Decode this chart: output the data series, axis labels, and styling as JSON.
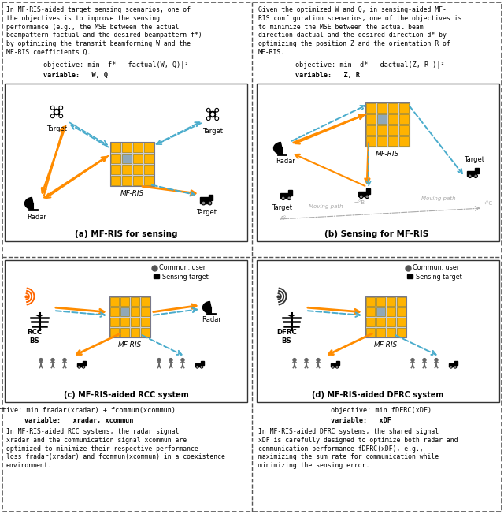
{
  "fig_width": 6.4,
  "fig_height": 6.52,
  "orange": "#FF8C00",
  "blue_dash": "#4AACCC",
  "gray_dash": "#AAAAAA",
  "panel_bg": "#f8f8f4",
  "text_a": [
    "In MF-RIS-aided target sensing scenarios, one of",
    "the objectives is to improve the sensing",
    "performance (e.g., the MSE between the actual",
    "beampattern factual and the desired beampattern f*)",
    "by optimizing the transmit beamforming W and the",
    "MF-RIS coefficients Q."
  ],
  "obj_a": "objective: min |f* - factual(W, Q)|²",
  "var_a": "variable:   W, Q",
  "text_b": [
    "Given the optimized W and Q, in sensing-aided MF-",
    "RIS configuration scenarios, one of the objectives is",
    "to minimize the MSE between the actual beam",
    "direction dactual and the desired direction d* by",
    "optimizing the position Z and the orientation R of",
    "MF-RIS."
  ],
  "obj_b": "objective: min |d* - dactual(Z, R )|²",
  "var_b": "variable:   Z, R",
  "obj_c": "objective: min fradar(xradar) + fcommun(xcommun)",
  "var_c": "variable:   xradar, xcommun",
  "text_c": [
    "In MF-RIS-aided RCC systems, the radar signal",
    "xradar and the communication signal xcommun are",
    "optimized to minimize their respective performance",
    "loss fradar(xradar) and fcommun(xcommun) in a coexistence",
    "environment."
  ],
  "obj_d": "objective: min fDFRC(xDF)",
  "var_d": "variable:   xDF",
  "text_d": [
    "In MF-RIS-aided DFRC systems, the shared signal",
    "xDF is carefully designed to optimize both radar and",
    "communication performance fDFRC(xDF), e.g.,",
    "maximizing the sum rate for communication while",
    "minimizing the sensing error."
  ],
  "cap_a": "(a) MF-RIS for sensing",
  "cap_b": "(b) Sensing for MF-RIS",
  "cap_c": "(c) MF-RIS-aided RCC system",
  "cap_d": "(d) MF-RIS-aided DFRC system"
}
